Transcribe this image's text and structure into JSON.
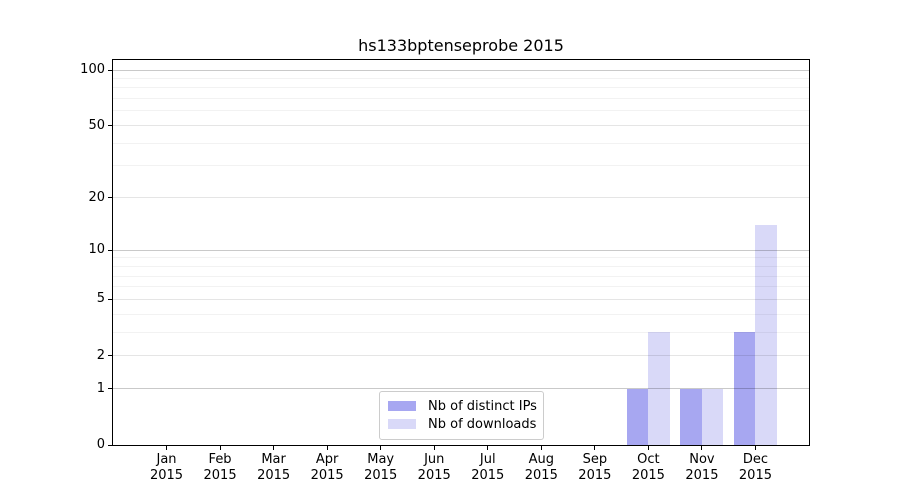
{
  "title": "hs133bptenseprobe 2015",
  "colors": {
    "distinct_ips_bar": "#a7a7f1",
    "downloads_bar": "#d9d9f8",
    "major_gridline": "rgba(0,0,0,0.21)",
    "labeled_gridline": "rgba(0,0,0,0.10)",
    "minor_gridline": "rgba(0,0,0,0.05)",
    "spine": "#000000"
  },
  "y_axis": {
    "tick_labels": [
      "0",
      "1",
      "2",
      "5",
      "10",
      "20",
      "50",
      "100"
    ]
  },
  "x_axis": {
    "months": [
      "Jan",
      "Feb",
      "Mar",
      "Apr",
      "May",
      "Jun",
      "Jul",
      "Aug",
      "Sep",
      "Oct",
      "Nov",
      "Dec"
    ],
    "year": "2015"
  },
  "legend": {
    "items": [
      {
        "label": "Nb of distinct IPs",
        "color": "#a7a7f1"
      },
      {
        "label": "Nb of downloads",
        "color": "#d9d9f8"
      }
    ]
  },
  "chart_data": {
    "type": "bar",
    "title": "hs133bptenseprobe 2015",
    "yscale": "log1p",
    "ylim": [
      0,
      100
    ],
    "ytick_values": [
      0,
      1,
      2,
      5,
      10,
      20,
      50,
      100
    ],
    "minor_gridline_values": [
      3,
      4,
      6,
      7,
      8,
      9,
      30,
      40,
      60,
      70,
      80,
      90
    ],
    "labeled_nonmajor_values": [
      2,
      5,
      20,
      50
    ],
    "major_values": [
      1,
      10,
      100
    ],
    "grid": "horizontal",
    "legend_position": "lower-center",
    "categories": [
      "Jan 2015",
      "Feb 2015",
      "Mar 2015",
      "Apr 2015",
      "May 2015",
      "Jun 2015",
      "Jul 2015",
      "Aug 2015",
      "Sep 2015",
      "Oct 2015",
      "Nov 2015",
      "Dec 2015"
    ],
    "series": [
      {
        "name": "Nb of distinct IPs",
        "color": "#a7a7f1",
        "values": [
          0,
          0,
          0,
          0,
          0,
          0,
          0,
          0,
          0,
          1,
          1,
          3
        ]
      },
      {
        "name": "Nb of downloads",
        "color": "#d9d9f8",
        "values": [
          0,
          0,
          0,
          0,
          0,
          0,
          0,
          0,
          0,
          3,
          1,
          14
        ]
      }
    ]
  }
}
